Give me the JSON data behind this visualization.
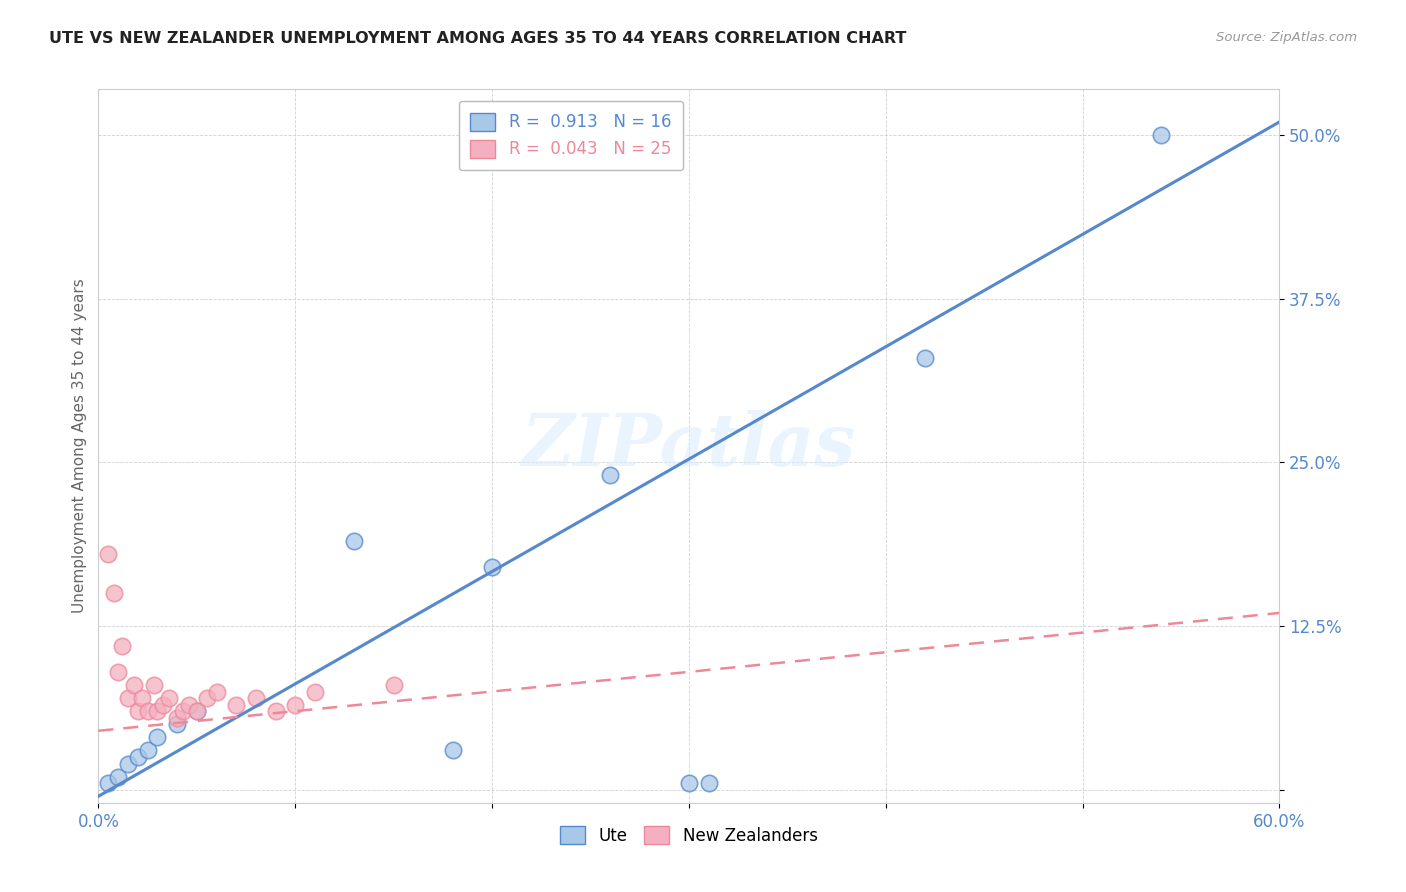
{
  "title": "UTE VS NEW ZEALANDER UNEMPLOYMENT AMONG AGES 35 TO 44 YEARS CORRELATION CHART",
  "source": "Source: ZipAtlas.com",
  "ylabel": "Unemployment Among Ages 35 to 44 years",
  "xlim": [
    0.0,
    0.6
  ],
  "ylim": [
    -0.01,
    0.535
  ],
  "xticks": [
    0.0,
    0.1,
    0.2,
    0.3,
    0.4,
    0.5,
    0.6
  ],
  "xtick_labels": [
    "0.0%",
    "",
    "",
    "",
    "",
    "",
    "60.0%"
  ],
  "ytick_labels": [
    "",
    "12.5%",
    "25.0%",
    "37.5%",
    "50.0%"
  ],
  "yticks": [
    0.0,
    0.125,
    0.25,
    0.375,
    0.5
  ],
  "ute_R": 0.913,
  "ute_N": 16,
  "nz_R": 0.043,
  "nz_N": 25,
  "ute_color": "#a8c8e8",
  "nz_color": "#f4b0c0",
  "ute_line_color": "#5588cc",
  "nz_line_color": "#ee8899",
  "background_color": "#ffffff",
  "ute_x": [
    0.005,
    0.01,
    0.015,
    0.02,
    0.025,
    0.03,
    0.04,
    0.05,
    0.13,
    0.18,
    0.2,
    0.26,
    0.3,
    0.31,
    0.42,
    0.54
  ],
  "ute_y": [
    0.005,
    0.01,
    0.02,
    0.025,
    0.03,
    0.04,
    0.05,
    0.06,
    0.19,
    0.03,
    0.17,
    0.24,
    0.005,
    0.005,
    0.33,
    0.5
  ],
  "nz_x": [
    0.005,
    0.008,
    0.01,
    0.012,
    0.015,
    0.018,
    0.02,
    0.022,
    0.025,
    0.028,
    0.03,
    0.033,
    0.036,
    0.04,
    0.043,
    0.046,
    0.05,
    0.055,
    0.06,
    0.07,
    0.08,
    0.09,
    0.1,
    0.11,
    0.15
  ],
  "nz_y": [
    0.18,
    0.15,
    0.09,
    0.11,
    0.07,
    0.08,
    0.06,
    0.07,
    0.06,
    0.08,
    0.06,
    0.065,
    0.07,
    0.055,
    0.06,
    0.065,
    0.06,
    0.07,
    0.075,
    0.065,
    0.07,
    0.06,
    0.065,
    0.075,
    0.08
  ],
  "ute_line_x": [
    0.0,
    0.6
  ],
  "ute_line_y": [
    -0.005,
    0.51
  ],
  "nz_line_x": [
    0.0,
    0.6
  ],
  "nz_line_y": [
    0.045,
    0.135
  ]
}
